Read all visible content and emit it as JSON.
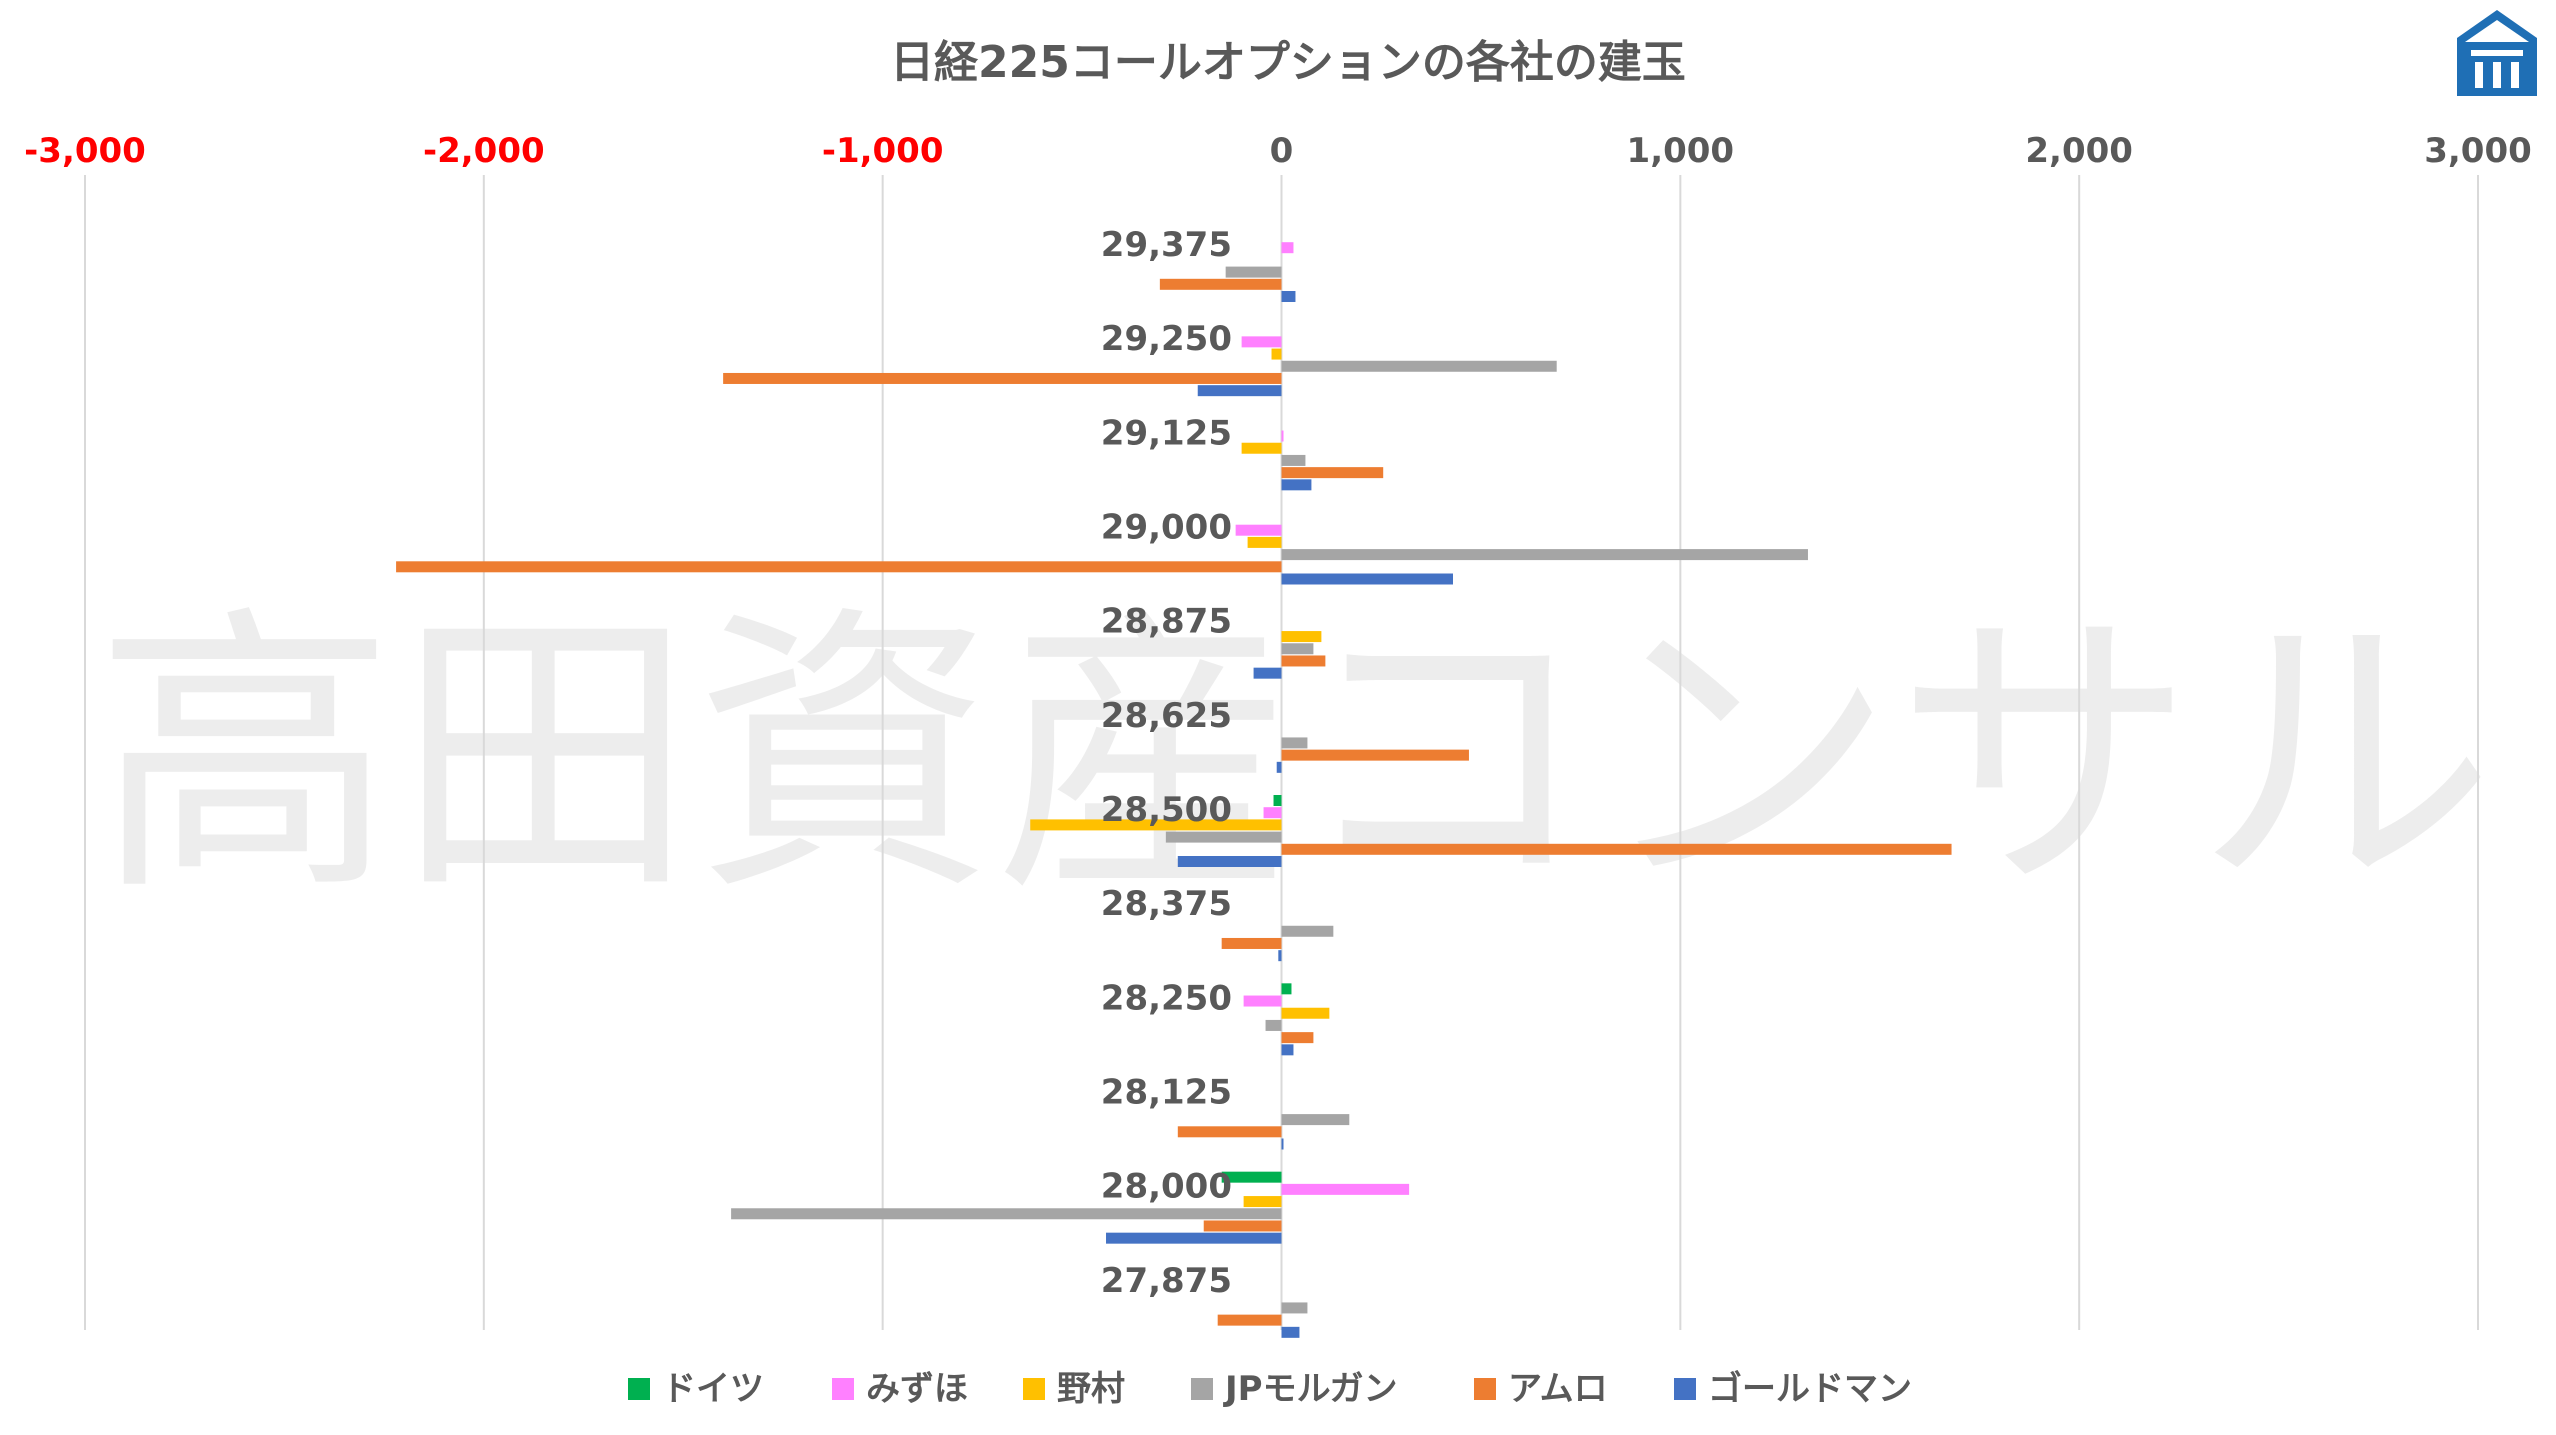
{
  "chart_data": {
    "type": "bar",
    "orientation": "horizontal",
    "title": "日経225コールオプションの各社の建玉",
    "watermark": "高田資産コンサル",
    "xlim": [
      -3000,
      3000
    ],
    "xticks": [
      -3000,
      -2000,
      -1000,
      0,
      1000,
      2000,
      3000
    ],
    "xtick_labels": [
      "-3,000",
      "-2,000",
      "-1,000",
      "0",
      "1,000",
      "2,000",
      "3,000"
    ],
    "negative_tick_color": "#ff0000",
    "positive_tick_color": "#595959",
    "grid": true,
    "legend_position": "bottom",
    "categories": [
      "29,375",
      "29,250",
      "29,125",
      "29,000",
      "28,875",
      "28,625",
      "28,500",
      "28,375",
      "28,250",
      "28,125",
      "28,000",
      "27,875"
    ],
    "series": [
      {
        "name": "ドイツ",
        "color": "#00b050",
        "values": [
          0,
          0,
          0,
          0,
          0,
          0,
          -20,
          0,
          25,
          0,
          -150,
          0
        ]
      },
      {
        "name": "みずほ",
        "color": "#ff80ff",
        "values": [
          30,
          -100,
          5,
          -115,
          0,
          0,
          -45,
          0,
          -95,
          0,
          320,
          0
        ]
      },
      {
        "name": "野村",
        "color": "#ffc000",
        "values": [
          0,
          -25,
          -100,
          -85,
          100,
          0,
          -630,
          0,
          120,
          0,
          -95,
          0
        ]
      },
      {
        "name": "JPモルガン",
        "color": "#a5a5a5",
        "values": [
          -140,
          690,
          60,
          1320,
          80,
          65,
          -290,
          130,
          -40,
          170,
          -1380,
          65
        ]
      },
      {
        "name": "アムロ",
        "color": "#ed7d31",
        "values": [
          -305,
          -1400,
          255,
          -2220,
          110,
          470,
          1680,
          -150,
          80,
          -260,
          -195,
          -160
        ]
      },
      {
        "name": "ゴールドマン",
        "color": "#4472c4",
        "values": [
          35,
          -210,
          75,
          430,
          -70,
          -12,
          -260,
          -8,
          30,
          5,
          -440,
          45
        ]
      }
    ]
  },
  "logo": {
    "name": "company-logo",
    "color": "#1f6fb5"
  }
}
